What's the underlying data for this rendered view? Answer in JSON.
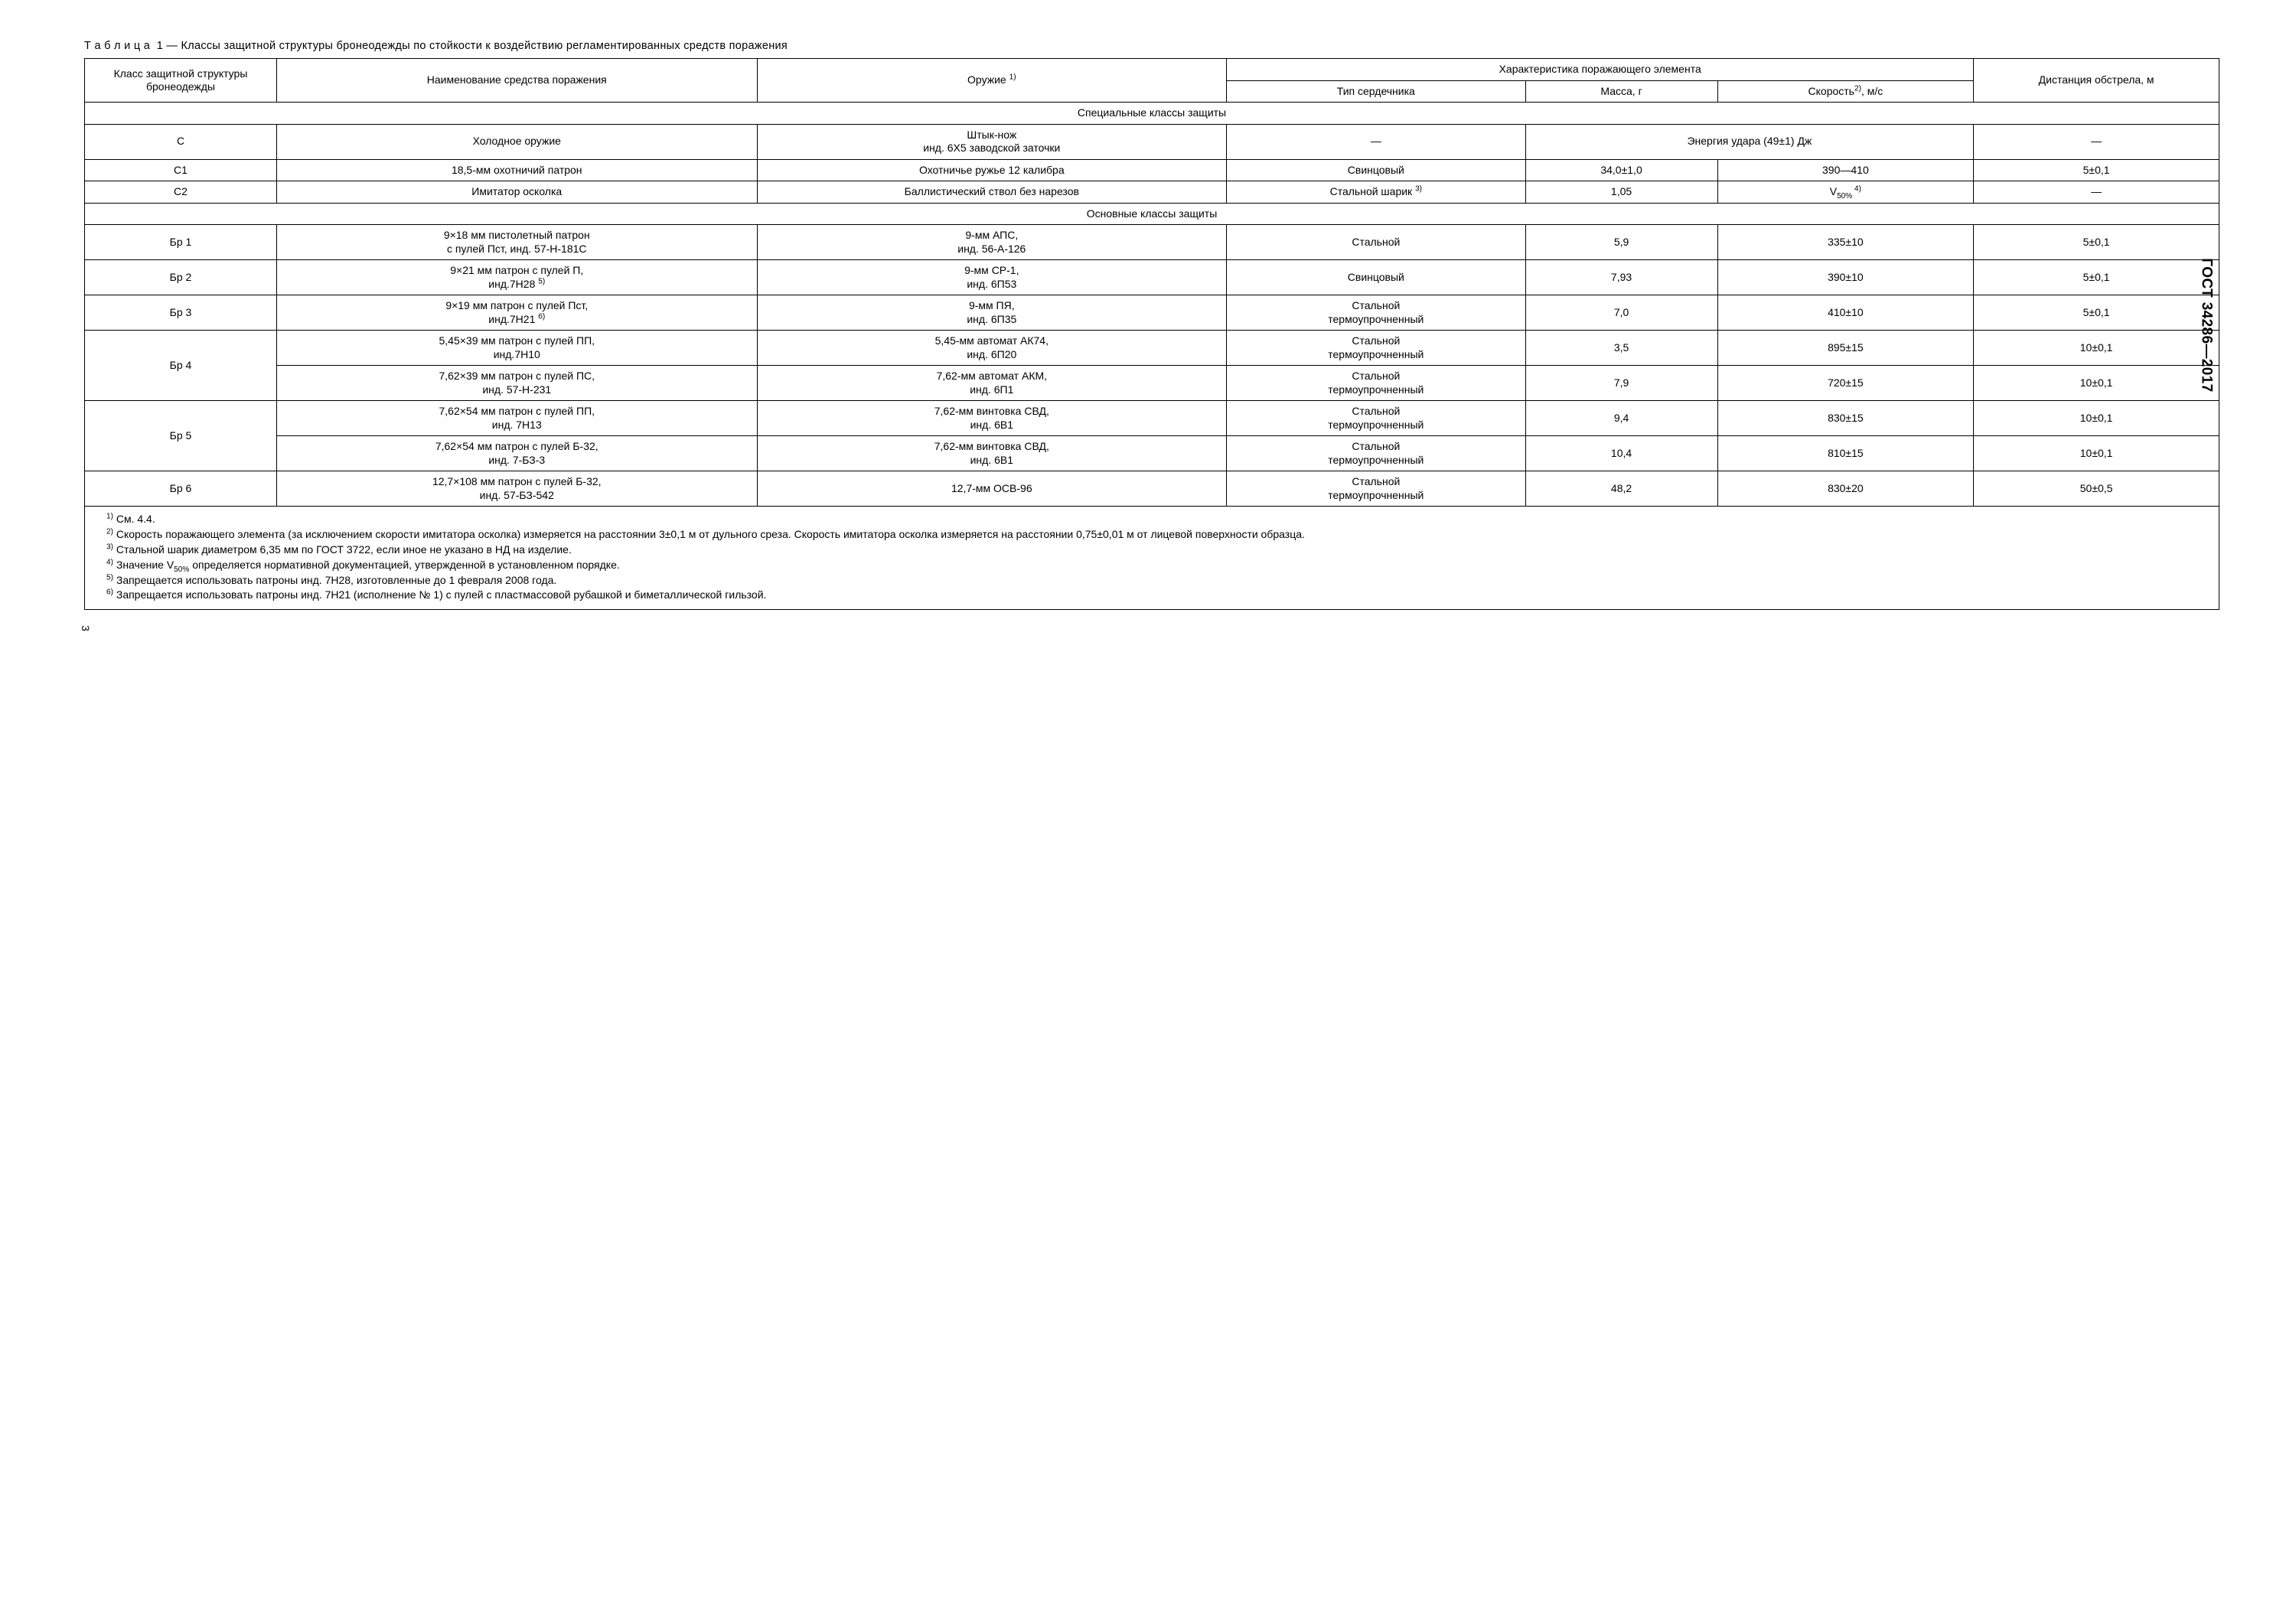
{
  "caption": {
    "prefix": "Т а б л и ц а  1 — ",
    "text": "Классы защитной структуры бронеодежды по стойкости к воздействию регламентированных средств поражения"
  },
  "headers": {
    "class": "Класс защитной структуры бронеодежды",
    "name": "Наименование средства поражения",
    "weapon_pre": "Оружие ",
    "weapon_sup": "1)",
    "proj_char": "Характеристика поражающего элемента",
    "core": "Тип сердечника",
    "mass": "Масса, г",
    "speed_pre": "Скорость",
    "speed_sup": "2)",
    "speed_post": ", м/с",
    "dist": "Дистанция обстрела, м"
  },
  "section1": "Специальные классы защиты",
  "section2": "Основные классы защиты",
  "rows": {
    "c": {
      "class": "С",
      "name": "Холодное оружие",
      "weapon_l1": "Штык-нож",
      "weapon_l2": "инд. 6Х5  заводской заточки",
      "core": "—",
      "energy": "Энергия удара (49±1) Дж",
      "dist": "—"
    },
    "c1": {
      "class": "С1",
      "name": "18,5-мм охотничий патрон",
      "weapon": "Охотничье ружье 12 калибра",
      "core": "Свинцовый",
      "mass": "34,0±1,0",
      "speed": "390—410",
      "dist": "5±0,1"
    },
    "c2": {
      "class": "С2",
      "name": "Имитатор осколка",
      "weapon": "Баллистический ствол без нарезов",
      "core_pre": "Стальной шарик ",
      "core_sup": "3)",
      "mass": "1,05",
      "speed_pre": "V",
      "speed_sub": "50%",
      "speed_sup": " 4)",
      "dist": "—"
    },
    "br1": {
      "class": "Бр 1",
      "name_l1": "9×18 мм пистолетный патрон",
      "name_l2": "с пулей Пст, инд. 57-Н-181С",
      "weapon_l1": "9-мм АПС,",
      "weapon_l2": "инд. 56-А-126",
      "core": "Стальной",
      "mass": "5,9",
      "speed": "335±10",
      "dist": "5±0,1"
    },
    "br2": {
      "class": "Бр 2",
      "name_l1": "9×21 мм патрон с пулей П,",
      "name_l2_pre": "инд.7Н28 ",
      "name_l2_sup": "5)",
      "weapon_l1": "9-мм СР-1,",
      "weapon_l2": "инд. 6П53",
      "core": "Свинцовый",
      "mass": "7,93",
      "speed": "390±10",
      "dist": "5±0,1"
    },
    "br3": {
      "class": "Бр 3",
      "name_l1": "9×19 мм патрон с пулей Пст,",
      "name_l2_pre": "инд.7Н21 ",
      "name_l2_sup": "6)",
      "weapon_l1": "9-мм ПЯ,",
      "weapon_l2": "инд. 6П35",
      "core_l1": "Стальной",
      "core_l2": "термоупрочненный",
      "mass": "7,0",
      "speed": "410±10",
      "dist": "5±0,1"
    },
    "br4": {
      "class": "Бр 4",
      "a": {
        "name_l1": "5,45×39 мм патрон с пулей ПП,",
        "name_l2": "инд.7Н10",
        "weapon_l1": "5,45-мм автомат АК74,",
        "weapon_l2": "инд. 6П20",
        "core_l1": "Стальной",
        "core_l2": "термоупрочненный",
        "mass": "3,5",
        "speed": "895±15",
        "dist": "10±0,1"
      },
      "b": {
        "name_l1": "7,62×39 мм патрон с пулей ПС,",
        "name_l2": "инд. 57-Н-231",
        "weapon_l1": "7,62-мм автомат АКМ,",
        "weapon_l2": "инд. 6П1",
        "core_l1": "Стальной",
        "core_l2": "термоупрочненный",
        "mass": "7,9",
        "speed": "720±15",
        "dist": "10±0,1"
      }
    },
    "br5": {
      "class": "Бр 5",
      "a": {
        "name_l1": "7,62×54 мм патрон с пулей ПП,",
        "name_l2": "инд. 7Н13",
        "weapon_l1": "7,62-мм винтовка СВД,",
        "weapon_l2": "инд. 6В1",
        "core_l1": "Стальной",
        "core_l2": "термоупрочненный",
        "mass": "9,4",
        "speed": "830±15",
        "dist": "10±0,1"
      },
      "b": {
        "name_l1": "7,62×54 мм патрон с пулей Б-32,",
        "name_l2": "инд. 7-БЗ-3",
        "weapon_l1": "7,62-мм винтовка СВД,",
        "weapon_l2": "инд. 6В1",
        "core_l1": "Стальной",
        "core_l2": "термоупрочненный",
        "mass": "10,4",
        "speed": "810±15",
        "dist": "10±0,1"
      }
    },
    "br6": {
      "class": "Бр 6",
      "name_l1": "12,7×108 мм патрон с пулей Б-32,",
      "name_l2": "инд. 57-БЗ-542",
      "weapon": "12,7-мм ОСВ-96",
      "core_l1": "Стальной",
      "core_l2": "термоупрочненный",
      "mass": "48,2",
      "speed": "830±20",
      "dist": "50±0,5"
    }
  },
  "footnotes": {
    "n1_sup": "1)",
    "n1": " См. 4.4.",
    "n2_sup": "2)",
    "n2": " Скорость поражающего элемента (за исключением скорости имитатора осколка) измеряется на расстоянии 3±0,1 м от дульного среза. Скорость имитатора осколка измеряется на расстоянии 0,75±0,01 м от лицевой поверхности образца.",
    "n3_sup": "3)",
    "n3": " Стальной шарик диаметром 6,35 мм по ГОСТ 3722, если иное не указано в НД на изделие.",
    "n4_sup": "4)",
    "n4_pre": " Значение V",
    "n4_sub": "50%",
    "n4_post": " определяется нормативной документацией, утвержденной в установленном порядке.",
    "n5_sup": "5)",
    "n5": " Запрещается использовать патроны инд. 7Н28, изготовленные до 1 февраля 2008 года.",
    "n6_sup": "6)",
    "n6": " Запрещается использовать патроны инд. 7Н21 (исполнение № 1) с пулей с пластмассовой рубашкой и биметаллической гильзой."
  },
  "side": "ГОСТ 34286—2017",
  "page": "3"
}
